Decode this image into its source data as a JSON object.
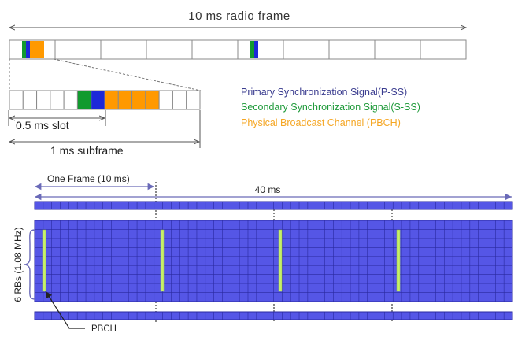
{
  "radio_frame": {
    "label": "10 ms radio frame",
    "subframe_count": 10,
    "sync_subframes": [
      0,
      5
    ]
  },
  "subframe_zoom": {
    "label": "1 ms subframe",
    "slot_label": "0.5 ms slot",
    "symbol_count": 14,
    "pss_symbol": 6,
    "sss_symbol": 5,
    "pbch_symbols": [
      7,
      8,
      9,
      10
    ]
  },
  "legend": {
    "items": [
      {
        "label": "Primary Synchronization Signal(P-SS)",
        "color": "#3a3c8f"
      },
      {
        "label": "Secondary Synchronization Signal(S-SS)",
        "color": "#1f9a3a"
      },
      {
        "label": "Physical Broadcast Channel (PBCH)",
        "color": "#f5a623"
      }
    ]
  },
  "colors": {
    "pss": "#1c28d8",
    "sss": "#119a2e",
    "pbch": "#ff9900",
    "grid_fill": "#5556e6",
    "grid_line": "#2a2aa0",
    "pbch_marker": "#c6f06a",
    "arrow": "#6a6ab8"
  },
  "bottom": {
    "frame_label": "One Frame (10 ms)",
    "span_label": "40 ms",
    "bandwidth_label": "6 RBs (1.08 MHz)",
    "pbch_label": "PBCH",
    "frame_count": 4
  }
}
